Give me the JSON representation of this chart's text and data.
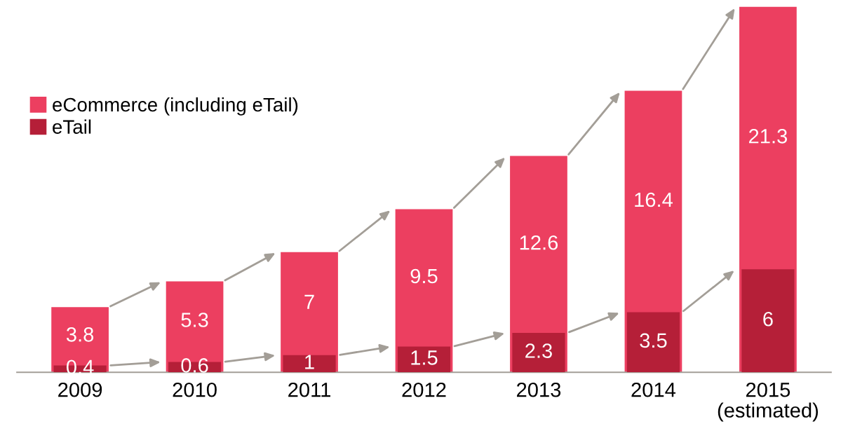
{
  "chart_data": {
    "type": "bar",
    "categories": [
      "2009",
      "2010",
      "2011",
      "2012",
      "2013",
      "2014",
      "2015\n(estimated)"
    ],
    "series": [
      {
        "name": "eCommerce (including eTail)",
        "color": "#ec3f60",
        "values": [
          3.8,
          5.3,
          7,
          9.5,
          12.6,
          16.4,
          21.3
        ]
      },
      {
        "name": "eTail",
        "color": "#b51f38",
        "values": [
          0.4,
          0.6,
          1,
          1.5,
          2.3,
          3.5,
          6
        ]
      }
    ],
    "data_labels": true,
    "legend": "top left",
    "grid": false
  }
}
